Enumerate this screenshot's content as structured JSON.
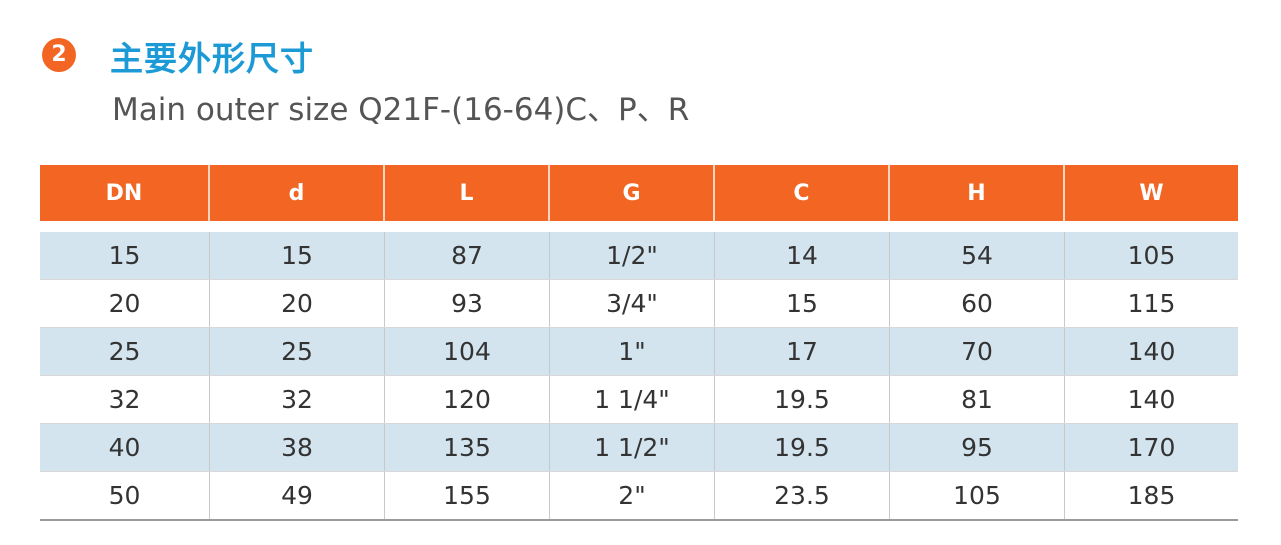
{
  "header": {
    "badge": "2",
    "title": "主要外形尺寸",
    "subtitle": "Main outer size Q21F-(16-64)C、P、R"
  },
  "table": {
    "columns": [
      "DN",
      "d",
      "L",
      "G",
      "C",
      "H",
      "W"
    ],
    "rows": [
      [
        "15",
        "15",
        "87",
        "1/2\"",
        "14",
        "54",
        "105"
      ],
      [
        "20",
        "20",
        "93",
        "3/4\"",
        "15",
        "60",
        "115"
      ],
      [
        "25",
        "25",
        "104",
        "1\"",
        "17",
        "70",
        "140"
      ],
      [
        "32",
        "32",
        "120",
        "1 1/4\"",
        "19.5",
        "81",
        "140"
      ],
      [
        "40",
        "38",
        "135",
        "1 1/2\"",
        "19.5",
        "95",
        "170"
      ],
      [
        "50",
        "49",
        "155",
        "2\"",
        "23.5",
        "105",
        "185"
      ]
    ]
  }
}
